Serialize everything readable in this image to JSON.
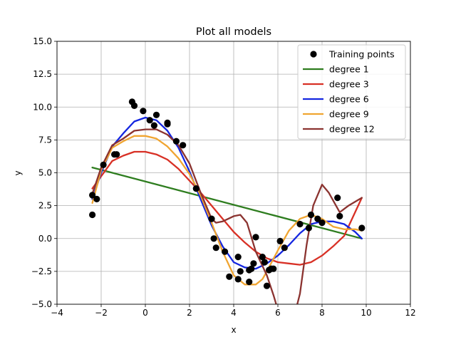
{
  "chart_data": {
    "type": "line",
    "title": "Plot all models",
    "xlabel": "x",
    "ylabel": "y",
    "xlim": [
      -4,
      12
    ],
    "ylim": [
      -5,
      15
    ],
    "xticks": [
      -4,
      -2,
      0,
      2,
      4,
      6,
      8,
      10,
      12
    ],
    "yticks": [
      -5.0,
      -2.5,
      0.0,
      2.5,
      5.0,
      7.5,
      10.0,
      12.5,
      15.0
    ],
    "xtick_labels": [
      "−4",
      "−2",
      "0",
      "2",
      "4",
      "6",
      "8",
      "10",
      "12"
    ],
    "ytick_labels": [
      "−5.0",
      "−2.5",
      "0.0",
      "2.5",
      "5.0",
      "7.5",
      "10.0",
      "12.5",
      "15.0"
    ],
    "grid": true,
    "legend_position": "top-right",
    "scatter": {
      "name": "Training points",
      "color": "#000000",
      "points": [
        [
          -2.4,
          3.3
        ],
        [
          -2.4,
          1.8
        ],
        [
          -2.2,
          3.0
        ],
        [
          -1.9,
          5.6
        ],
        [
          -1.4,
          6.4
        ],
        [
          -1.3,
          6.4
        ],
        [
          -0.6,
          10.4
        ],
        [
          -0.5,
          10.1
        ],
        [
          -0.1,
          9.7
        ],
        [
          0.2,
          9.0
        ],
        [
          0.4,
          8.6
        ],
        [
          0.5,
          9.4
        ],
        [
          1.0,
          8.8
        ],
        [
          1.0,
          8.7
        ],
        [
          1.4,
          7.4
        ],
        [
          1.7,
          7.1
        ],
        [
          2.3,
          3.8
        ],
        [
          3.0,
          1.5
        ],
        [
          3.1,
          0.0
        ],
        [
          3.2,
          -0.7
        ],
        [
          3.6,
          -1.0
        ],
        [
          3.8,
          -2.9
        ],
        [
          4.2,
          -3.1
        ],
        [
          4.2,
          -1.4
        ],
        [
          4.3,
          -2.5
        ],
        [
          4.7,
          -3.3
        ],
        [
          4.7,
          -2.4
        ],
        [
          4.8,
          -2.3
        ],
        [
          4.9,
          -1.9
        ],
        [
          5.0,
          0.1
        ],
        [
          5.3,
          -1.4
        ],
        [
          5.4,
          -1.8
        ],
        [
          5.5,
          -3.6
        ],
        [
          5.6,
          -2.4
        ],
        [
          5.7,
          -2.3
        ],
        [
          5.8,
          -2.3
        ],
        [
          6.1,
          -0.2
        ],
        [
          6.3,
          -0.7
        ],
        [
          7.0,
          1.1
        ],
        [
          7.4,
          0.8
        ],
        [
          7.5,
          1.8
        ],
        [
          7.8,
          1.5
        ],
        [
          8.0,
          1.2
        ],
        [
          8.7,
          3.1
        ],
        [
          8.8,
          1.7
        ],
        [
          9.8,
          0.8
        ]
      ]
    },
    "series": [
      {
        "name": "degree 1",
        "color": "#2e7d1f",
        "x": [
          -2.4,
          9.8
        ],
        "y": [
          5.4,
          0.0
        ]
      },
      {
        "name": "degree 3",
        "color": "#d83025",
        "x": [
          -2.4,
          -1.5,
          -1.0,
          -0.5,
          0.0,
          0.5,
          1.0,
          1.5,
          2.0,
          2.5,
          3.0,
          3.5,
          4.0,
          4.5,
          5.0,
          5.5,
          6.0,
          6.5,
          7.0,
          7.5,
          8.0,
          8.5,
          9.0,
          9.8
        ],
        "y": [
          3.8,
          5.9,
          6.3,
          6.6,
          6.6,
          6.4,
          6.0,
          5.3,
          4.4,
          3.5,
          2.5,
          1.5,
          0.5,
          -0.3,
          -1.0,
          -1.5,
          -1.8,
          -1.9,
          -2.0,
          -1.8,
          -1.3,
          -0.6,
          0.2,
          3.1
        ]
      },
      {
        "name": "degree 6",
        "color": "#1426e0",
        "x": [
          -2.4,
          -2.0,
          -1.5,
          -1.0,
          -0.5,
          0.0,
          0.5,
          1.0,
          1.5,
          2.0,
          2.5,
          3.0,
          3.5,
          4.0,
          4.5,
          5.0,
          5.5,
          6.0,
          6.5,
          7.0,
          7.5,
          8.0,
          8.5,
          9.0,
          9.5,
          9.8
        ],
        "y": [
          3.0,
          5.0,
          7.0,
          8.0,
          8.9,
          9.2,
          9.0,
          8.2,
          6.9,
          5.1,
          3.0,
          1.0,
          -0.6,
          -1.8,
          -2.2,
          -2.3,
          -1.9,
          -1.3,
          -0.5,
          0.4,
          1.1,
          1.3,
          1.3,
          1.1,
          0.5,
          0.0
        ]
      },
      {
        "name": "degree 9",
        "color": "#f0a531",
        "x": [
          -2.4,
          -2.0,
          -1.5,
          -1.0,
          -0.5,
          0.0,
          0.5,
          1.0,
          1.5,
          2.0,
          2.5,
          3.0,
          3.5,
          4.0,
          4.5,
          5.0,
          5.3,
          5.5,
          6.0,
          6.5,
          7.0,
          7.5,
          8.0,
          8.5,
          9.0,
          9.5,
          9.8
        ],
        "y": [
          2.7,
          5.2,
          6.9,
          7.4,
          7.8,
          7.8,
          7.6,
          7.0,
          6.1,
          4.9,
          3.3,
          1.2,
          -1.0,
          -2.8,
          -3.5,
          -3.5,
          -3.1,
          -2.5,
          -0.9,
          0.6,
          1.5,
          1.8,
          1.5,
          0.9,
          0.7,
          0.7,
          0.6
        ]
      },
      {
        "name": "degree 12",
        "color": "#8b3330",
        "x": [
          -2.4,
          -2.0,
          -1.5,
          -1.0,
          -0.5,
          0.0,
          0.5,
          1.0,
          1.5,
          2.0,
          2.5,
          3.0,
          3.2,
          3.5,
          4.0,
          4.3,
          4.6,
          5.0,
          5.5,
          5.8,
          6.1,
          6.5,
          7.0,
          7.3,
          7.6,
          8.0,
          8.3,
          8.8,
          9.2,
          9.6,
          9.8
        ],
        "y": [
          3.4,
          5.4,
          7.1,
          7.6,
          8.2,
          8.3,
          8.3,
          7.9,
          7.1,
          5.7,
          3.5,
          1.5,
          1.2,
          1.3,
          1.7,
          1.8,
          1.2,
          -1.0,
          -2.8,
          -4.3,
          -6.0,
          -7.5,
          -4.2,
          -0.5,
          2.5,
          4.1,
          3.5,
          2.0,
          2.5,
          2.9,
          3.1
        ]
      }
    ]
  }
}
